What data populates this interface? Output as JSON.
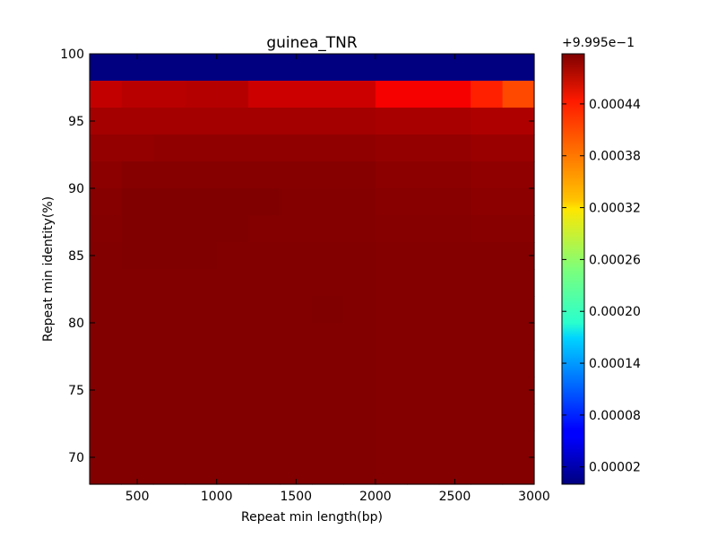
{
  "chart_data": {
    "type": "heatmap",
    "title": "guinea_TNR",
    "xlabel": "Repeat min length(bp)",
    "ylabel": "Repeat min identity(%)",
    "xlim": [
      200,
      3000
    ],
    "ylim": [
      68,
      100
    ],
    "xticks": [
      500,
      1000,
      1500,
      2000,
      2500,
      3000
    ],
    "yticks": [
      70,
      75,
      80,
      85,
      90,
      95,
      100
    ],
    "x_edges": [
      200,
      400,
      600,
      800,
      1000,
      1200,
      1400,
      1600,
      1800,
      2000,
      2200,
      2400,
      2600,
      2800,
      3000
    ],
    "y_edges": [
      68,
      70,
      72,
      74,
      76,
      78,
      80,
      82,
      84,
      86,
      88,
      90,
      92,
      94,
      96,
      98,
      100
    ],
    "rows_top_to_bottom": [
      [
        0.0,
        0.0,
        0.0,
        0.0,
        0.0,
        0.0,
        0.0,
        0.0,
        0.0,
        0.0,
        0.0,
        0.0,
        0.0,
        0.0
      ],
      [
        0.000465,
        0.00047,
        0.00047,
        0.000472,
        0.000472,
        0.00046,
        0.00046,
        0.00046,
        0.00046,
        0.00044,
        0.00044,
        0.00044,
        0.00042,
        0.0004
      ],
      [
        0.00048,
        0.00048,
        0.00048,
        0.00048,
        0.00048,
        0.00048,
        0.00048,
        0.00048,
        0.00048,
        0.000478,
        0.000478,
        0.000478,
        0.000475,
        0.000475
      ],
      [
        0.000488,
        0.000488,
        0.00049,
        0.00049,
        0.00049,
        0.00049,
        0.00049,
        0.00049,
        0.00049,
        0.000488,
        0.000488,
        0.000488,
        0.000485,
        0.000485
      ],
      [
        0.000492,
        0.000495,
        0.000495,
        0.000495,
        0.000495,
        0.000495,
        0.000495,
        0.000495,
        0.000495,
        0.000492,
        0.000492,
        0.000492,
        0.00049,
        0.00049
      ],
      [
        0.000495,
        0.000498,
        0.000498,
        0.000498,
        0.000498,
        0.000498,
        0.000496,
        0.000496,
        0.000496,
        0.000494,
        0.000494,
        0.000494,
        0.000492,
        0.000492
      ],
      [
        0.000496,
        0.000498,
        0.000498,
        0.000498,
        0.000498,
        0.000496,
        0.000496,
        0.000496,
        0.000496,
        0.000495,
        0.000495,
        0.000495,
        0.000494,
        0.000494
      ],
      [
        0.000497,
        0.000498,
        0.000498,
        0.000498,
        0.000497,
        0.000497,
        0.000497,
        0.000497,
        0.000497,
        0.000496,
        0.000496,
        0.000496,
        0.000496,
        0.000496
      ],
      [
        0.000497,
        0.000497,
        0.000497,
        0.000497,
        0.000497,
        0.000497,
        0.000497,
        0.000497,
        0.000497,
        0.000496,
        0.000496,
        0.000496,
        0.000496,
        0.000496
      ],
      [
        0.000497,
        0.000497,
        0.000497,
        0.000497,
        0.000497,
        0.000497,
        0.000497,
        0.000498,
        0.000497,
        0.000496,
        0.000496,
        0.000496,
        0.000496,
        0.000496
      ],
      [
        0.000497,
        0.000497,
        0.000497,
        0.000497,
        0.000497,
        0.000497,
        0.000497,
        0.000497,
        0.000497,
        0.000496,
        0.000496,
        0.000496,
        0.000496,
        0.000496
      ],
      [
        0.000497,
        0.000497,
        0.000497,
        0.000497,
        0.000497,
        0.000497,
        0.000497,
        0.000497,
        0.000497,
        0.000496,
        0.000496,
        0.000496,
        0.000496,
        0.000496
      ],
      [
        0.000497,
        0.000497,
        0.000497,
        0.000497,
        0.000497,
        0.000497,
        0.000497,
        0.000497,
        0.000497,
        0.000496,
        0.000496,
        0.000496,
        0.000496,
        0.000496
      ],
      [
        0.000497,
        0.000497,
        0.000497,
        0.000497,
        0.000497,
        0.000497,
        0.000497,
        0.000497,
        0.000497,
        0.000496,
        0.000496,
        0.000496,
        0.000496,
        0.000496
      ],
      [
        0.000497,
        0.000497,
        0.000497,
        0.000497,
        0.000497,
        0.000497,
        0.000497,
        0.000497,
        0.000497,
        0.000496,
        0.000496,
        0.000496,
        0.000496,
        0.000496
      ],
      [
        0.000497,
        0.000497,
        0.000497,
        0.000497,
        0.000497,
        0.000497,
        0.000497,
        0.000497,
        0.000497,
        0.000496,
        0.000496,
        0.000496,
        0.000496,
        0.000496
      ]
    ],
    "value_offset_label": "+9.995e−1",
    "colorbar": {
      "colormap": "jet",
      "vmin": 0.0,
      "vmax": 0.000498,
      "ticks": [
        2e-05,
        8e-05,
        0.00014,
        0.0002,
        0.00026,
        0.00032,
        0.00038,
        0.00044
      ],
      "tick_labels": [
        "0.00002",
        "0.00008",
        "0.00014",
        "0.00020",
        "0.00026",
        "0.00032",
        "0.00038",
        "0.00044"
      ]
    },
    "grid": false,
    "legend": "colorbar-right"
  }
}
